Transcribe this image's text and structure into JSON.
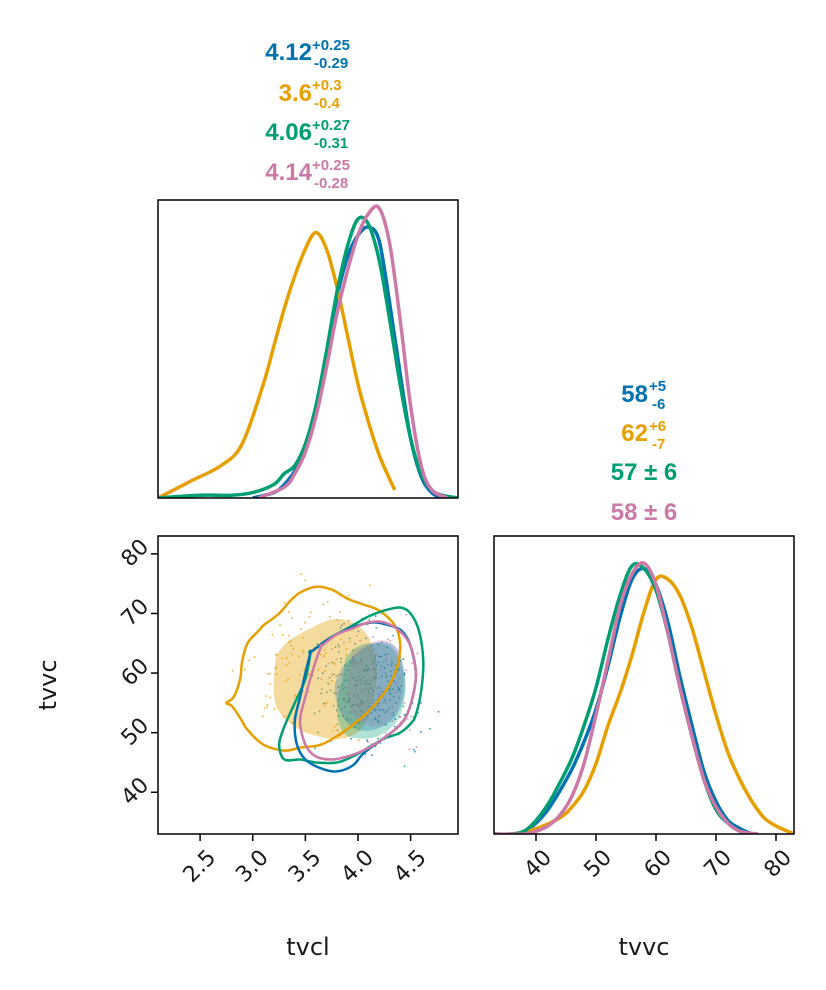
{
  "chart_data": [
    {
      "type": "line",
      "panel": "tvcl-marginal-density",
      "xlabel": "",
      "ylabel": "",
      "xlim": [
        2.1,
        4.95
      ],
      "series": [
        {
          "name": "chain-blue",
          "color": "#0072B2",
          "x": [
            3.0,
            3.2,
            3.3,
            3.4,
            3.5,
            3.6,
            3.7,
            3.8,
            3.9,
            4.0,
            4.1,
            4.2,
            4.3,
            4.4,
            4.5,
            4.6,
            4.7,
            4.8
          ],
          "y": [
            0.0,
            0.02,
            0.05,
            0.1,
            0.18,
            0.32,
            0.52,
            0.74,
            0.89,
            0.97,
            1.0,
            0.95,
            0.72,
            0.46,
            0.22,
            0.08,
            0.02,
            0.0
          ]
        },
        {
          "name": "chain-orange",
          "color": "#E69F00",
          "x": [
            2.1,
            2.4,
            2.7,
            2.9,
            3.1,
            3.2,
            3.3,
            3.4,
            3.5,
            3.6,
            3.7,
            3.8,
            3.9,
            4.0,
            4.1,
            4.2,
            4.3,
            4.35
          ],
          "y": [
            0.0,
            0.06,
            0.12,
            0.2,
            0.42,
            0.56,
            0.7,
            0.82,
            0.92,
            0.98,
            0.92,
            0.78,
            0.6,
            0.42,
            0.28,
            0.16,
            0.07,
            0.03
          ]
        },
        {
          "name": "chain-green",
          "color": "#009E73",
          "x": [
            2.1,
            2.5,
            2.8,
            3.0,
            3.2,
            3.3,
            3.4,
            3.5,
            3.6,
            3.7,
            3.8,
            3.9,
            4.0,
            4.1,
            4.2,
            4.3,
            4.4,
            4.5,
            4.6,
            4.7,
            4.8,
            4.95
          ],
          "y": [
            0.0,
            0.01,
            0.01,
            0.02,
            0.05,
            0.09,
            0.12,
            0.2,
            0.34,
            0.54,
            0.76,
            0.93,
            1.03,
            1.01,
            0.88,
            0.66,
            0.42,
            0.22,
            0.09,
            0.03,
            0.01,
            0.0
          ]
        },
        {
          "name": "chain-pink",
          "color": "#CC79A7",
          "x": [
            3.05,
            3.3,
            3.4,
            3.5,
            3.6,
            3.7,
            3.8,
            3.9,
            4.0,
            4.1,
            4.2,
            4.3,
            4.4,
            4.5,
            4.6,
            4.7,
            4.85
          ],
          "y": [
            0.0,
            0.04,
            0.09,
            0.17,
            0.3,
            0.48,
            0.68,
            0.84,
            0.97,
            1.05,
            1.07,
            0.94,
            0.66,
            0.34,
            0.12,
            0.03,
            0.0
          ]
        }
      ]
    },
    {
      "type": "line",
      "panel": "tvvc-marginal-density",
      "xlabel": "tvvc",
      "ylabel": "",
      "xlim": [
        33,
        83
      ],
      "xticks": [
        "40",
        "50",
        "60",
        "70",
        "80"
      ],
      "xtick_values": [
        40,
        50,
        60,
        70,
        80
      ],
      "series": [
        {
          "name": "chain-blue",
          "color": "#0072B2",
          "x": [
            33,
            36,
            38,
            40,
            42,
            44,
            46,
            48,
            50,
            52,
            54,
            56,
            58,
            60,
            62,
            64,
            66,
            68,
            70,
            72,
            74,
            76
          ],
          "y": [
            0.0,
            0.0,
            0.01,
            0.04,
            0.09,
            0.16,
            0.24,
            0.34,
            0.46,
            0.62,
            0.8,
            0.94,
            0.98,
            0.92,
            0.78,
            0.58,
            0.4,
            0.23,
            0.12,
            0.05,
            0.02,
            0.0
          ]
        },
        {
          "name": "chain-orange",
          "color": "#E69F00",
          "x": [
            33,
            36,
            40,
            44,
            46,
            48,
            50,
            52,
            54,
            56,
            58,
            60,
            62,
            64,
            66,
            68,
            70,
            72,
            74,
            76,
            78,
            80,
            83
          ],
          "y": [
            0.0,
            0.0,
            0.02,
            0.06,
            0.1,
            0.16,
            0.26,
            0.4,
            0.52,
            0.66,
            0.82,
            0.94,
            0.94,
            0.88,
            0.76,
            0.6,
            0.44,
            0.3,
            0.2,
            0.12,
            0.06,
            0.03,
            0.0
          ]
        },
        {
          "name": "chain-green",
          "color": "#009E73",
          "x": [
            33,
            36,
            38,
            40,
            42,
            44,
            46,
            48,
            50,
            52,
            54,
            56,
            58,
            60,
            62,
            64,
            66,
            68,
            70,
            72,
            74,
            76
          ],
          "y": [
            0.0,
            0.0,
            0.01,
            0.05,
            0.11,
            0.19,
            0.28,
            0.4,
            0.54,
            0.72,
            0.88,
            0.99,
            0.98,
            0.9,
            0.74,
            0.54,
            0.36,
            0.2,
            0.09,
            0.04,
            0.01,
            0.0
          ]
        },
        {
          "name": "chain-pink",
          "color": "#CC79A7",
          "x": [
            33,
            38,
            40,
            42,
            44,
            46,
            48,
            50,
            52,
            54,
            56,
            58,
            60,
            62,
            64,
            66,
            68,
            70,
            72,
            74,
            77
          ],
          "y": [
            0.0,
            0.0,
            0.01,
            0.03,
            0.07,
            0.14,
            0.26,
            0.44,
            0.64,
            0.84,
            0.96,
            1.0,
            0.92,
            0.74,
            0.54,
            0.36,
            0.2,
            0.1,
            0.04,
            0.01,
            0.0
          ]
        }
      ]
    },
    {
      "type": "scatter",
      "panel": "tvcl-vs-tvvc-joint",
      "xlabel": "tvcl",
      "ylabel": "tvvc",
      "xlim": [
        2.1,
        4.95
      ],
      "ylim": [
        33,
        83
      ],
      "xticks": [
        "2.5",
        "3.0",
        "3.5",
        "4.0",
        "4.5"
      ],
      "xtick_values": [
        2.5,
        3.0,
        3.5,
        4.0,
        4.5
      ],
      "yticks": [
        "40",
        "50",
        "60",
        "70",
        "80"
      ],
      "ytick_values": [
        40,
        50,
        60,
        70,
        80
      ],
      "filled_regions": [
        {
          "name": "orange-core",
          "color": "#E69F00",
          "opacity": 0.38,
          "x": [
            3.22,
            3.35,
            3.55,
            3.75,
            3.95,
            4.1,
            4.18,
            4.15,
            4.05,
            3.85,
            3.6,
            3.4,
            3.25,
            3.2,
            3.22
          ],
          "y": [
            63,
            65.5,
            67.5,
            69,
            68.5,
            66,
            61,
            56,
            51,
            49,
            49.5,
            51,
            53.5,
            57,
            63
          ]
        },
        {
          "name": "green-core",
          "color": "#009E73",
          "opacity": 0.3,
          "x": [
            3.88,
            4.0,
            4.15,
            4.3,
            4.4,
            4.45,
            4.42,
            4.35,
            4.2,
            4.05,
            3.9,
            3.82,
            3.8,
            3.85,
            3.88
          ],
          "y": [
            62.5,
            64.5,
            65,
            64.5,
            62,
            58,
            54,
            51.5,
            49.5,
            49,
            49.5,
            51.5,
            55,
            59,
            62.5
          ]
        },
        {
          "name": "pink-core",
          "color": "#CC79A7",
          "opacity": 0.28,
          "x": [
            3.95,
            4.1,
            4.25,
            4.38,
            4.43,
            4.4,
            4.3,
            4.15,
            4.02,
            3.93,
            3.9,
            3.95
          ],
          "y": [
            63.5,
            65,
            65.5,
            64,
            60,
            55,
            52,
            51,
            52,
            54,
            58,
            63.5
          ]
        },
        {
          "name": "blue-core",
          "color": "#0072B2",
          "opacity": 0.28,
          "x": [
            3.85,
            4.0,
            4.15,
            4.3,
            4.4,
            4.45,
            4.42,
            4.32,
            4.15,
            4.0,
            3.88,
            3.8,
            3.78,
            3.85
          ],
          "y": [
            61,
            63.5,
            65,
            65,
            63,
            59,
            55,
            52,
            50.5,
            50.5,
            52,
            55,
            58,
            61
          ]
        }
      ],
      "contours": [
        {
          "name": "orange-outer",
          "color": "#E69F00",
          "x": [
            3.1,
            3.25,
            3.35,
            3.45,
            3.6,
            3.75,
            3.9,
            4.05,
            4.2,
            4.35,
            4.4,
            4.38,
            4.3,
            4.15,
            4.0,
            3.85,
            3.65,
            3.45,
            3.3,
            3.1,
            2.95,
            2.88,
            2.8,
            2.75,
            2.82,
            2.88,
            2.9,
            2.95,
            3.05,
            3.1
          ],
          "y": [
            68,
            70,
            72,
            73.5,
            74.5,
            74,
            72.5,
            71.5,
            70.5,
            68,
            65,
            61.5,
            58,
            54.5,
            52,
            50,
            48,
            47.5,
            47,
            48,
            50.5,
            52.5,
            54.5,
            55,
            56,
            59,
            62,
            65,
            67,
            68
          ]
        },
        {
          "name": "green-outer",
          "color": "#009E73",
          "x": [
            3.55,
            3.75,
            3.95,
            4.1,
            4.25,
            4.4,
            4.5,
            4.58,
            4.62,
            4.6,
            4.55,
            4.5,
            4.4,
            4.25,
            4.1,
            3.95,
            3.8,
            3.6,
            3.45,
            3.3,
            3.25,
            3.3,
            3.4,
            3.5,
            3.55
          ],
          "y": [
            63.5,
            66,
            68,
            69.5,
            70.5,
            71,
            70,
            67,
            62,
            57,
            53,
            51.5,
            50,
            49,
            47.5,
            46,
            45,
            45,
            45.5,
            45.5,
            48,
            51,
            55,
            59,
            63.5
          ]
        },
        {
          "name": "blue-outer",
          "color": "#0072B2",
          "x": [
            3.55,
            3.7,
            3.85,
            4.0,
            4.15,
            4.3,
            4.42,
            4.5,
            4.55,
            4.52,
            4.45,
            4.35,
            4.2,
            4.05,
            3.95,
            3.8,
            3.65,
            3.5,
            3.42,
            3.4,
            3.45,
            3.5,
            3.55
          ],
          "y": [
            63.5,
            65.5,
            67,
            68,
            68.5,
            68,
            67,
            64.5,
            60,
            56,
            52.5,
            50.5,
            48.5,
            46.5,
            44.5,
            43.5,
            44,
            45.5,
            48,
            52,
            56,
            60,
            63.5
          ]
        },
        {
          "name": "pink-outer",
          "color": "#CC79A7",
          "x": [
            3.65,
            3.8,
            3.95,
            4.1,
            4.25,
            4.4,
            4.5,
            4.55,
            4.52,
            4.45,
            4.35,
            4.2,
            4.05,
            3.9,
            3.75,
            3.6,
            3.5,
            3.45,
            3.5,
            3.58,
            3.65
          ],
          "y": [
            64.5,
            66.5,
            67.5,
            68.5,
            68.5,
            67,
            64.5,
            60,
            56,
            52.5,
            50.5,
            48.5,
            47,
            46,
            45.5,
            46,
            48,
            52,
            56,
            61,
            64.5
          ]
        }
      ]
    }
  ],
  "stats": {
    "tvcl": [
      {
        "main": "4.12",
        "sup": "+0.25",
        "sub": "-0.29",
        "color": "#0072B2"
      },
      {
        "main": "3.6",
        "sup": "+0.3",
        "sub": "-0.4",
        "color": "#E69F00"
      },
      {
        "main": "4.06",
        "sup": "+0.27",
        "sub": "-0.31",
        "color": "#009E73"
      },
      {
        "main": "4.14",
        "sup": "+0.25",
        "sub": "-0.28",
        "color": "#CC79A7"
      }
    ],
    "tvvc": [
      {
        "main": "58",
        "sup": "+5",
        "sub": "-6",
        "color": "#0072B2"
      },
      {
        "main": "62",
        "sup": "+6",
        "sub": "-7",
        "color": "#E69F00"
      },
      {
        "main": "57 ± 6",
        "sup": "",
        "sub": "",
        "color": "#009E73"
      },
      {
        "main": "58 ± 6",
        "sup": "",
        "sub": "",
        "color": "#CC79A7"
      }
    ]
  }
}
